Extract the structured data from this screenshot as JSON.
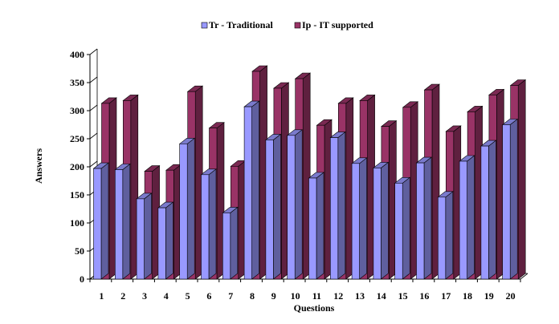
{
  "chart_data": {
    "type": "bar",
    "style": "3d-clustered-column",
    "categories": [
      "1",
      "2",
      "3",
      "4",
      "5",
      "6",
      "7",
      "8",
      "9",
      "10",
      "11",
      "12",
      "13",
      "14",
      "15",
      "16",
      "17",
      "18",
      "19",
      "20"
    ],
    "series": [
      {
        "name": "Tr - Traditional",
        "color": "#9999ff",
        "values": [
          197,
          195,
          143,
          127,
          241,
          186,
          118,
          307,
          248,
          256,
          180,
          252,
          206,
          198,
          171,
          207,
          146,
          210,
          237,
          275
        ]
      },
      {
        "name": "Ip - IT supported",
        "color": "#993366",
        "values": [
          313,
          318,
          192,
          194,
          334,
          269,
          201,
          370,
          340,
          357,
          274,
          313,
          318,
          272,
          306,
          337,
          263,
          298,
          328,
          345
        ]
      }
    ],
    "xlabel": "Questions",
    "ylabel": "Answers",
    "ylim": [
      0,
      400
    ],
    "yticks": [
      0,
      50,
      100,
      150,
      200,
      250,
      300,
      350,
      400
    ],
    "grid": false,
    "legend": "top-center"
  }
}
